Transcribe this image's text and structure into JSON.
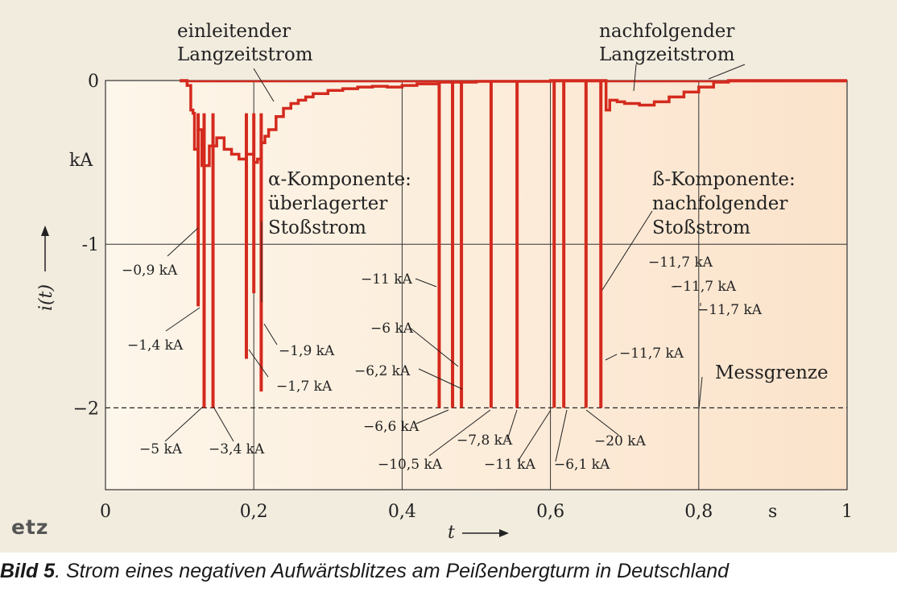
{
  "logo": "etz",
  "caption": {
    "prefix": "Bild 5",
    "text": ". Strom eines negativen Aufwärtsblitzes am Peißenbergturm in Deutschland"
  },
  "colors": {
    "signal": "#d42a1e",
    "background": "#f2ecdf",
    "plot_gradient_start": "#fdf6ea",
    "plot_gradient_end": "#fbe3cb",
    "grid": "#333333"
  },
  "chart_data": {
    "type": "line",
    "title": "",
    "xlabel": "t",
    "ylabel": "i(t)",
    "y_unit": "kA",
    "x_unit": "s",
    "xlim": [
      0,
      1
    ],
    "ylim": [
      -2.5,
      0
    ],
    "x_ticks": [
      {
        "v": 0,
        "label": "0"
      },
      {
        "v": 0.2,
        "label": "0,2"
      },
      {
        "v": 0.4,
        "label": "0,4"
      },
      {
        "v": 0.6,
        "label": "0,6"
      },
      {
        "v": 0.8,
        "label": "0,8"
      },
      {
        "v": 1,
        "label": "1"
      }
    ],
    "y_ticks": [
      {
        "v": 0,
        "label": "0"
      },
      {
        "v": -1,
        "label": "-1"
      },
      {
        "v": -2,
        "label": "−2"
      }
    ],
    "grid": true,
    "measurement_limit": {
      "y": -2,
      "label": "Messgrenze"
    },
    "series": [
      {
        "values": [
          [
            0.1,
            0
          ],
          [
            0.11,
            -0.03
          ],
          [
            0.115,
            -0.18
          ],
          [
            0.118,
            -0.2
          ],
          [
            0.12,
            -0.42
          ],
          [
            0.125,
            -0.3
          ],
          [
            0.13,
            -0.52
          ],
          [
            0.14,
            -0.4
          ],
          [
            0.15,
            -0.35
          ],
          [
            0.16,
            -0.42
          ],
          [
            0.17,
            -0.45
          ],
          [
            0.18,
            -0.48
          ],
          [
            0.19,
            -0.45
          ],
          [
            0.2,
            -0.5
          ],
          [
            0.205,
            -0.48
          ],
          [
            0.21,
            -0.38
          ],
          [
            0.215,
            -0.34
          ],
          [
            0.22,
            -0.3
          ],
          [
            0.23,
            -0.22
          ],
          [
            0.24,
            -0.17
          ],
          [
            0.25,
            -0.14
          ],
          [
            0.26,
            -0.12
          ],
          [
            0.27,
            -0.1
          ],
          [
            0.28,
            -0.08
          ],
          [
            0.3,
            -0.06
          ],
          [
            0.32,
            -0.05
          ],
          [
            0.34,
            -0.04
          ],
          [
            0.36,
            -0.035
          ],
          [
            0.38,
            -0.04
          ],
          [
            0.4,
            -0.03
          ],
          [
            0.42,
            -0.02
          ],
          [
            0.45,
            -0.01
          ],
          [
            0.5,
            -0.005
          ],
          [
            0.6,
            0
          ],
          [
            0.67,
            0
          ],
          [
            0.675,
            -0.18
          ],
          [
            0.68,
            -0.12
          ],
          [
            0.69,
            -0.13
          ],
          [
            0.7,
            -0.14
          ],
          [
            0.72,
            -0.15
          ],
          [
            0.74,
            -0.13
          ],
          [
            0.76,
            -0.1
          ],
          [
            0.78,
            -0.07
          ],
          [
            0.8,
            -0.04
          ],
          [
            0.82,
            -0.01
          ],
          [
            0.84,
            0
          ],
          [
            1,
            0
          ]
        ]
      }
    ],
    "components": [
      {
        "name": "alpha",
        "strokes": [
          {
            "x": 0.125,
            "y": -1.38
          },
          {
            "x": 0.133,
            "y": -2.0
          },
          {
            "x": 0.145,
            "y": -2.0
          },
          {
            "x": 0.19,
            "y": -1.7
          },
          {
            "x": 0.2,
            "y": -1.3
          },
          {
            "x": 0.21,
            "y": -1.9
          }
        ]
      },
      {
        "name": "beta",
        "strokes": [
          {
            "x": 0.45,
            "y": -2.0
          },
          {
            "x": 0.468,
            "y": -2.0
          },
          {
            "x": 0.48,
            "y": -2.0
          },
          {
            "x": 0.52,
            "y": -2.0
          },
          {
            "x": 0.555,
            "y": -2.0
          },
          {
            "x": 0.605,
            "y": -2.0
          },
          {
            "x": 0.618,
            "y": -2.0
          },
          {
            "x": 0.648,
            "y": -2.0
          },
          {
            "x": 0.668,
            "y": -2.0
          }
        ]
      }
    ],
    "annotations": {
      "einleitender": [
        "einleitender",
        "Langzeitstrom"
      ],
      "nachfolgender": [
        "nachfolgender",
        "Langzeitstrom"
      ],
      "alpha": [
        "α-Komponente:",
        "überlagerter",
        "Stoßstrom"
      ],
      "beta": [
        "ß-Komponente:",
        "nachfolgender",
        "Stoßstrom"
      ]
    },
    "data_labels": [
      "−0,9 kA",
      "−1,4 kA",
      "−1,9 kA",
      "−1,7 kA",
      "−5 kA",
      "−3,4 kA",
      "−11 kA",
      "−6 kA",
      "−6,2 kA",
      "−6,6 kA",
      "−10,5 kA",
      "−7,8 kA",
      "−11 kA",
      "−6,1 kA",
      "−20 kA",
      "−11,7 kA",
      "−11,7 kA",
      "−11,7 kA",
      "−11,7 kA"
    ]
  }
}
